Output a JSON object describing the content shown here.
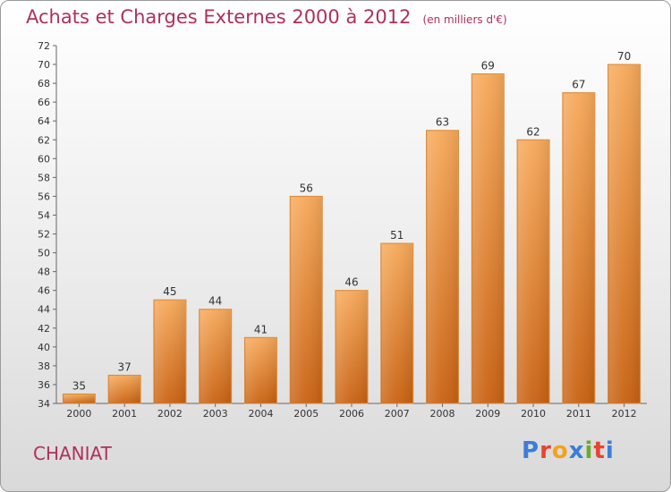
{
  "header": {
    "title": "Achats et Charges Externes 2000 à 2012",
    "unit": "(en milliers d'€)"
  },
  "footer": {
    "commune": "CHANIAT",
    "logo_text": "Proxiti"
  },
  "colors": {
    "title": "#b0305a",
    "bar_top": "#f6a95a",
    "bar_bottom": "#c96212",
    "logo": [
      "#3b7dd8",
      "#e8442e",
      "#f2a21c",
      "#3b7dd8",
      "#6aaa2a",
      "#e8442e",
      "#3b7dd8"
    ]
  },
  "chart_data": {
    "type": "bar",
    "title": "Achats et Charges Externes 2000 à 2012",
    "subtitle": "(en milliers d'€)",
    "categories": [
      "2000",
      "2001",
      "2002",
      "2003",
      "2004",
      "2005",
      "2006",
      "2007",
      "2008",
      "2009",
      "2010",
      "2011",
      "2012"
    ],
    "values": [
      35,
      37,
      45,
      44,
      41,
      56,
      46,
      51,
      63,
      69,
      62,
      67,
      70
    ],
    "ylim": [
      34,
      72
    ],
    "yticks": [
      34,
      36,
      38,
      40,
      42,
      44,
      46,
      48,
      50,
      52,
      54,
      56,
      58,
      60,
      62,
      64,
      66,
      68,
      70,
      72
    ],
    "grid": false,
    "data_labels": true
  }
}
